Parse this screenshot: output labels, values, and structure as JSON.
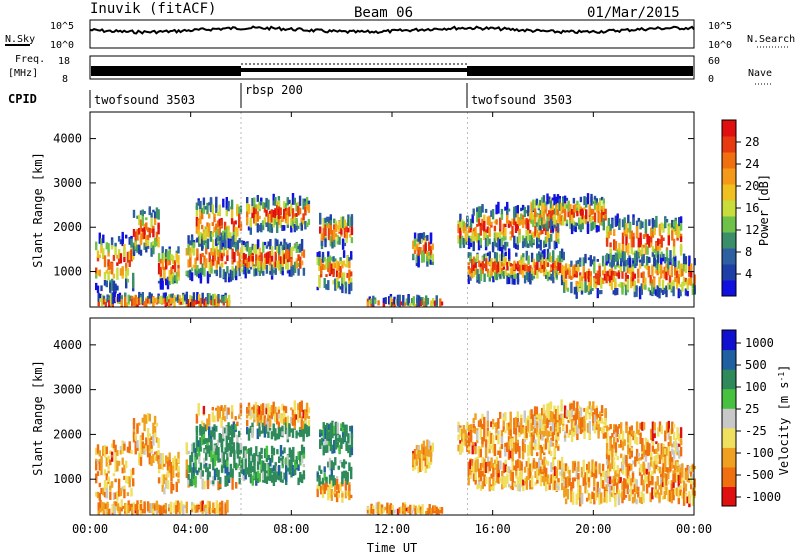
{
  "header": {
    "station": "Inuvik (fitACF)",
    "beam": "Beam 06",
    "date": "01/Mar/2015"
  },
  "strips": {
    "nsky_label": "N.Sky",
    "nsky_ticks": [
      "10^5",
      "10^0"
    ],
    "nsearch_label": "N.Search",
    "freq_label_line1": "Freq.",
    "freq_label_line2": "[MHz]",
    "freq_ticks": [
      "18",
      "8"
    ],
    "nave_ticks": [
      "60",
      "0"
    ],
    "nave_label": "Nave",
    "cpid_label": "CPID",
    "cpid_segments": [
      {
        "name": "twofsound 3503",
        "start_h": 0,
        "end_h": 6
      },
      {
        "name": "rbsp 200",
        "start_h": 6,
        "end_h": 15
      },
      {
        "name": "twofsound 3503",
        "start_h": 15,
        "end_h": 24
      }
    ]
  },
  "chart_data": [
    {
      "type": "heatmap",
      "parameter": "power",
      "xlabel": "",
      "ylabel": "Slant Range [km]",
      "xlim_h": [
        0,
        24
      ],
      "ylim": [
        200,
        4600
      ],
      "yticks": [
        "1000",
        "2000",
        "3000",
        "4000"
      ],
      "colorbar": {
        "label": "Power [dB]",
        "ticks": [
          "4",
          "8",
          "12",
          "16",
          "20",
          "24",
          "28"
        ],
        "colors": [
          "#1010e0",
          "#1e3ea8",
          "#2e5fa0",
          "#3a8f6a",
          "#6ec24a",
          "#c8dc3c",
          "#f0c020",
          "#f59a18",
          "#f07010",
          "#e83a10",
          "#e01010"
        ]
      }
    },
    {
      "type": "heatmap",
      "parameter": "velocity",
      "xlabel": "Time UT",
      "ylabel": "Slant Range [km]",
      "xlim_h": [
        0,
        24
      ],
      "ylim": [
        200,
        4600
      ],
      "xticks": [
        "00:00",
        "04:00",
        "08:00",
        "12:00",
        "16:00",
        "20:00",
        "00:00"
      ],
      "yticks": [
        "1000",
        "2000",
        "3000",
        "4000"
      ],
      "colorbar": {
        "label": "Velocity [m s",
        "label_sup": "-1",
        "label_close": "]",
        "ticks": [
          "1000",
          "500",
          "100",
          "25",
          "-25",
          "-100",
          "-500",
          "-1000"
        ],
        "colors": [
          "#1010d0",
          "#2060a0",
          "#2e8a5a",
          "#48c040",
          "#c8c8c8",
          "#f0e060",
          "#f0a020",
          "#f07010",
          "#e01010"
        ]
      }
    }
  ]
}
